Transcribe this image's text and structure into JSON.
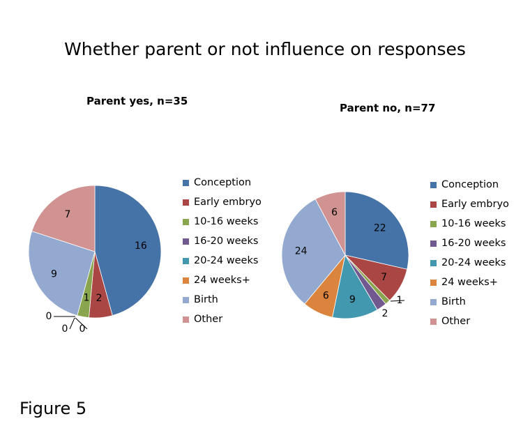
{
  "chart_data": [
    {
      "type": "pie",
      "title": "Parent yes, n=35",
      "categories": [
        "Conception",
        "Early embryo",
        "10-16 weeks",
        "16-20 weeks",
        "20-24 weeks",
        "24 weeks+",
        "Birth",
        "Other"
      ],
      "values": [
        16,
        2,
        1,
        0,
        0,
        0,
        9,
        7
      ],
      "colors": [
        "#4572A7",
        "#AA4643",
        "#89A54E",
        "#71588F",
        "#4198AF",
        "#DB843D",
        "#93A9CF",
        "#D19392"
      ],
      "data_labels": true,
      "legend": "right"
    },
    {
      "type": "pie",
      "title": "Parent no, n=77",
      "categories": [
        "Conception",
        "Early embryo",
        "10-16 weeks",
        "16-20 weeks",
        "20-24 weeks",
        "24 weeks+",
        "Birth",
        "Other"
      ],
      "values": [
        22,
        7,
        1,
        2,
        9,
        6,
        24,
        6
      ],
      "colors": [
        "#4572A7",
        "#AA4643",
        "#89A54E",
        "#71588F",
        "#4198AF",
        "#DB843D",
        "#93A9CF",
        "#D19392"
      ],
      "data_labels": true,
      "legend": "right"
    }
  ],
  "title": "Whether parent or not influence on responses",
  "caption": "Figure 5"
}
